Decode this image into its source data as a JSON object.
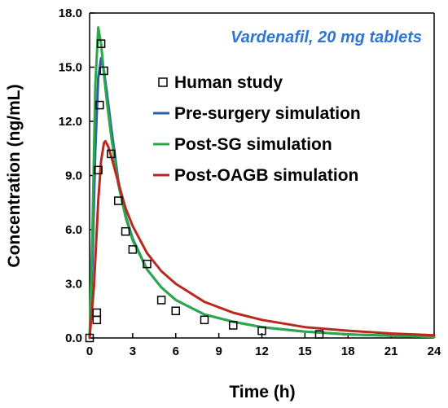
{
  "chart_data": {
    "type": "line",
    "title": "Vardenafil, 20 mg tablets",
    "title_color": "#2e75d6",
    "xlabel": "Time (h)",
    "ylabel": "Concentration (ng/mL)",
    "xlim": [
      0,
      24
    ],
    "ylim": [
      0,
      18
    ],
    "x_ticks": [
      0,
      3,
      6,
      9,
      12,
      15,
      18,
      21,
      24
    ],
    "x_tick_labels": [
      "0",
      "3",
      "6",
      "9",
      "12",
      "15",
      "18",
      "21",
      "24"
    ],
    "y_ticks": [
      0,
      3,
      6,
      9,
      12,
      15,
      18
    ],
    "y_tick_labels": [
      "0.0",
      "3.0",
      "6.0",
      "9.0",
      "12.0",
      "15.0",
      "18.0"
    ],
    "grid": false,
    "legend_position": "top-right",
    "observed": {
      "name": "Human study",
      "marker": "open-square",
      "color": "#000000",
      "x": [
        0,
        0.5,
        0.5,
        0.6,
        0.7,
        0.8,
        1.0,
        1.5,
        2.0,
        2.5,
        3.0,
        4.0,
        5.0,
        6.0,
        8.0,
        10.0,
        12.0,
        16.0
      ],
      "y": [
        0.0,
        1.0,
        1.4,
        9.3,
        12.9,
        16.3,
        14.8,
        10.2,
        7.6,
        5.9,
        4.9,
        4.1,
        2.1,
        1.5,
        1.0,
        0.7,
        0.4,
        0.2
      ]
    },
    "series": [
      {
        "name": "Pre-surgery simulation",
        "color": "#2e5ea8",
        "x": [
          0,
          0.2,
          0.4,
          0.6,
          0.8,
          1.0,
          1.2,
          1.5,
          2.0,
          2.5,
          3.0,
          4.0,
          5.0,
          6.0,
          8.0,
          10.0,
          12.0,
          15.0,
          18.0,
          21.0,
          24.0
        ],
        "y": [
          0.0,
          4.2,
          10.4,
          14.4,
          15.5,
          14.8,
          13.6,
          11.7,
          8.7,
          6.8,
          5.5,
          3.8,
          2.8,
          2.1,
          1.3,
          0.9,
          0.6,
          0.35,
          0.2,
          0.12,
          0.06
        ]
      },
      {
        "name": "Post-SG simulation",
        "color": "#2aa84a",
        "x": [
          0,
          0.2,
          0.4,
          0.6,
          0.8,
          1.0,
          1.2,
          1.5,
          2.0,
          2.5,
          3.0,
          4.0,
          5.0,
          6.0,
          8.0,
          10.0,
          12.0,
          15.0,
          18.0,
          21.0,
          24.0
        ],
        "y": [
          0.0,
          6.0,
          14.0,
          17.2,
          16.3,
          14.6,
          13.1,
          11.2,
          8.5,
          6.7,
          5.4,
          3.8,
          2.8,
          2.1,
          1.3,
          0.9,
          0.6,
          0.35,
          0.2,
          0.12,
          0.06
        ]
      },
      {
        "name": "Post-OAGB simulation",
        "color": "#b8291e",
        "x": [
          0,
          0.3,
          0.6,
          0.8,
          1.0,
          1.1,
          1.3,
          1.6,
          2.0,
          2.5,
          3.0,
          4.0,
          5.0,
          6.0,
          8.0,
          10.0,
          12.0,
          15.0,
          18.0,
          21.0,
          24.0
        ],
        "y": [
          0.0,
          2.8,
          7.6,
          9.8,
          10.8,
          10.9,
          10.6,
          9.8,
          8.6,
          7.2,
          6.2,
          4.7,
          3.7,
          3.0,
          2.0,
          1.4,
          1.0,
          0.6,
          0.4,
          0.25,
          0.15
        ]
      }
    ]
  }
}
